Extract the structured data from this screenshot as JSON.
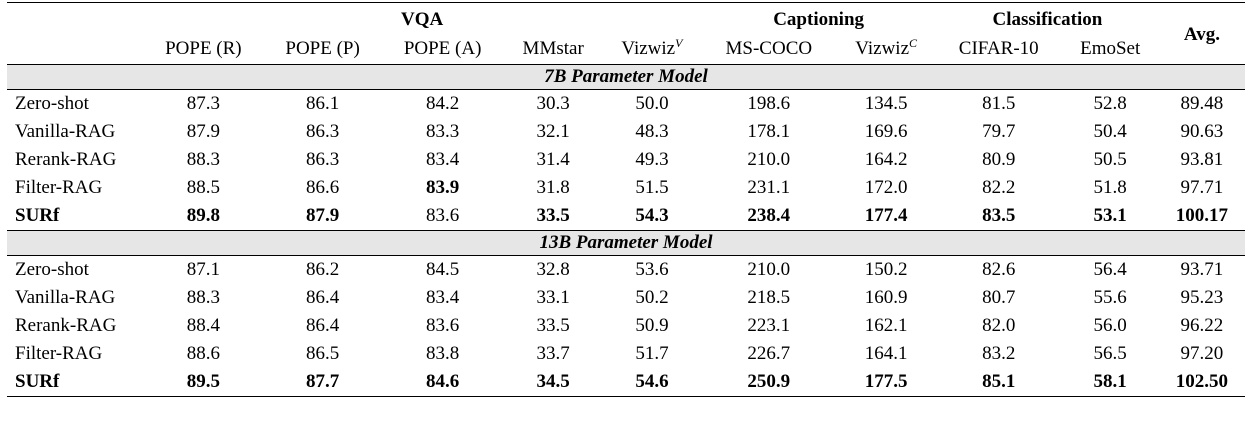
{
  "groups": {
    "vqa": "VQA",
    "captioning": "Captioning",
    "classification": "Classification",
    "avg": "Avg."
  },
  "columns": {
    "pope_r": "POPE (R)",
    "pope_p": "POPE (P)",
    "pope_a": "POPE (A)",
    "mmstar": "MMstar",
    "vizwiz_v": "Vizwiz",
    "vizwiz_v_sup": "V",
    "mscoco": "MS-COCO",
    "vizwiz_c": "Vizwiz",
    "vizwiz_c_sup": "C",
    "cifar10": "CIFAR-10",
    "emoset": "EmoSet"
  },
  "sections": [
    {
      "title": "7B Parameter Model",
      "rows": [
        {
          "method": "Zero-shot",
          "v": [
            "87.3",
            "86.1",
            "84.2",
            "30.3",
            "50.0",
            "198.6",
            "134.5",
            "81.5",
            "52.8",
            "89.48"
          ]
        },
        {
          "method": "Vanilla-RAG",
          "v": [
            "87.9",
            "86.3",
            "83.3",
            "32.1",
            "48.3",
            "178.1",
            "169.6",
            "79.7",
            "50.4",
            "90.63"
          ]
        },
        {
          "method": "Rerank-RAG",
          "v": [
            "88.3",
            "86.3",
            "83.4",
            "31.4",
            "49.3",
            "210.0",
            "164.2",
            "80.9",
            "50.5",
            "93.81"
          ]
        },
        {
          "method": "Filter-RAG",
          "v": [
            "88.5",
            "86.6",
            "83.9",
            "31.8",
            "51.5",
            "231.1",
            "172.0",
            "82.2",
            "51.8",
            "97.71"
          ]
        },
        {
          "method": "SURf",
          "v": [
            "89.8",
            "87.9",
            "83.6",
            "33.5",
            "54.3",
            "238.4",
            "177.4",
            "83.5",
            "53.1",
            "100.17"
          ]
        }
      ]
    },
    {
      "title": "13B Parameter Model",
      "rows": [
        {
          "method": "Zero-shot",
          "v": [
            "87.1",
            "86.2",
            "84.5",
            "32.8",
            "53.6",
            "210.0",
            "150.2",
            "82.6",
            "56.4",
            "93.71"
          ]
        },
        {
          "method": "Vanilla-RAG",
          "v": [
            "88.3",
            "86.4",
            "83.4",
            "33.1",
            "50.2",
            "218.5",
            "160.9",
            "80.7",
            "55.6",
            "95.23"
          ]
        },
        {
          "method": "Rerank-RAG",
          "v": [
            "88.4",
            "86.4",
            "83.6",
            "33.5",
            "50.9",
            "223.1",
            "162.1",
            "82.0",
            "56.0",
            "96.22"
          ]
        },
        {
          "method": "Filter-RAG",
          "v": [
            "88.6",
            "86.5",
            "83.8",
            "33.7",
            "51.7",
            "226.7",
            "164.1",
            "83.2",
            "56.5",
            "97.20"
          ]
        },
        {
          "method": "SURf",
          "v": [
            "89.5",
            "87.7",
            "84.6",
            "34.5",
            "54.6",
            "250.9",
            "177.5",
            "85.1",
            "58.1",
            "102.50"
          ]
        }
      ]
    }
  ],
  "bold_cells": [
    [
      3,
      2
    ],
    [
      4,
      0
    ],
    [
      4,
      1
    ],
    [
      4,
      3
    ],
    [
      4,
      4
    ],
    [
      4,
      5
    ],
    [
      4,
      6
    ],
    [
      4,
      7
    ],
    [
      4,
      8
    ],
    [
      4,
      9
    ],
    [
      9,
      0
    ],
    [
      9,
      1
    ],
    [
      9,
      2
    ],
    [
      9,
      3
    ],
    [
      9,
      4
    ],
    [
      9,
      5
    ],
    [
      9,
      6
    ],
    [
      9,
      7
    ],
    [
      9,
      8
    ],
    [
      9,
      9
    ]
  ]
}
